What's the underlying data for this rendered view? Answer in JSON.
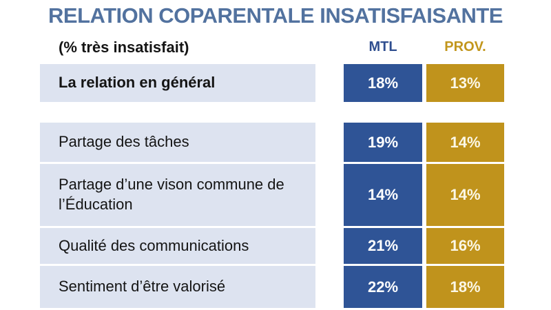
{
  "title": "RELATION COPARENTALE INSATISFAISANTE",
  "table": {
    "subtitle": "(% très insatisfait)",
    "columns": {
      "mtl": "MTL",
      "prov": "PROV."
    },
    "rows": [
      {
        "label": "La relation en général",
        "mtl": "18%",
        "prov": "13%"
      },
      {
        "label": "Partage des tâches",
        "mtl": "19%",
        "prov": "14%"
      },
      {
        "label": "Partage d’une vison commune de\nl’Éducation",
        "mtl": "14%",
        "prov": "14%"
      },
      {
        "label": "Qualité des communications",
        "mtl": "21%",
        "prov": "16%"
      },
      {
        "label": "Sentiment d’être valorisé",
        "mtl": "22%",
        "prov": "18%"
      }
    ]
  },
  "colors": {
    "title_text": "#52729f",
    "mtl_header_text": "#2f4e8f",
    "prov_header_text": "#c2961c",
    "mtl_cell_bg": "#2f5496",
    "prov_cell_bg": "#c0931c",
    "label_row_bg": "#dde3f0",
    "mtl_cell_text": "#ffffff",
    "prov_cell_text": "#fbf7e6"
  },
  "chart_data": {
    "type": "table",
    "title": "RELATION COPARENTALE INSATISFAISANTE",
    "subtitle": "(% très insatisfait)",
    "categories": [
      "La relation en général",
      "Partage des tâches",
      "Partage d’une vison commune de l’Éducation",
      "Qualité des communications",
      "Sentiment d’être valorisé"
    ],
    "series": [
      {
        "name": "MTL",
        "values": [
          18,
          19,
          14,
          21,
          22
        ]
      },
      {
        "name": "PROV.",
        "values": [
          13,
          14,
          14,
          16,
          18
        ]
      }
    ],
    "unit": "%"
  }
}
